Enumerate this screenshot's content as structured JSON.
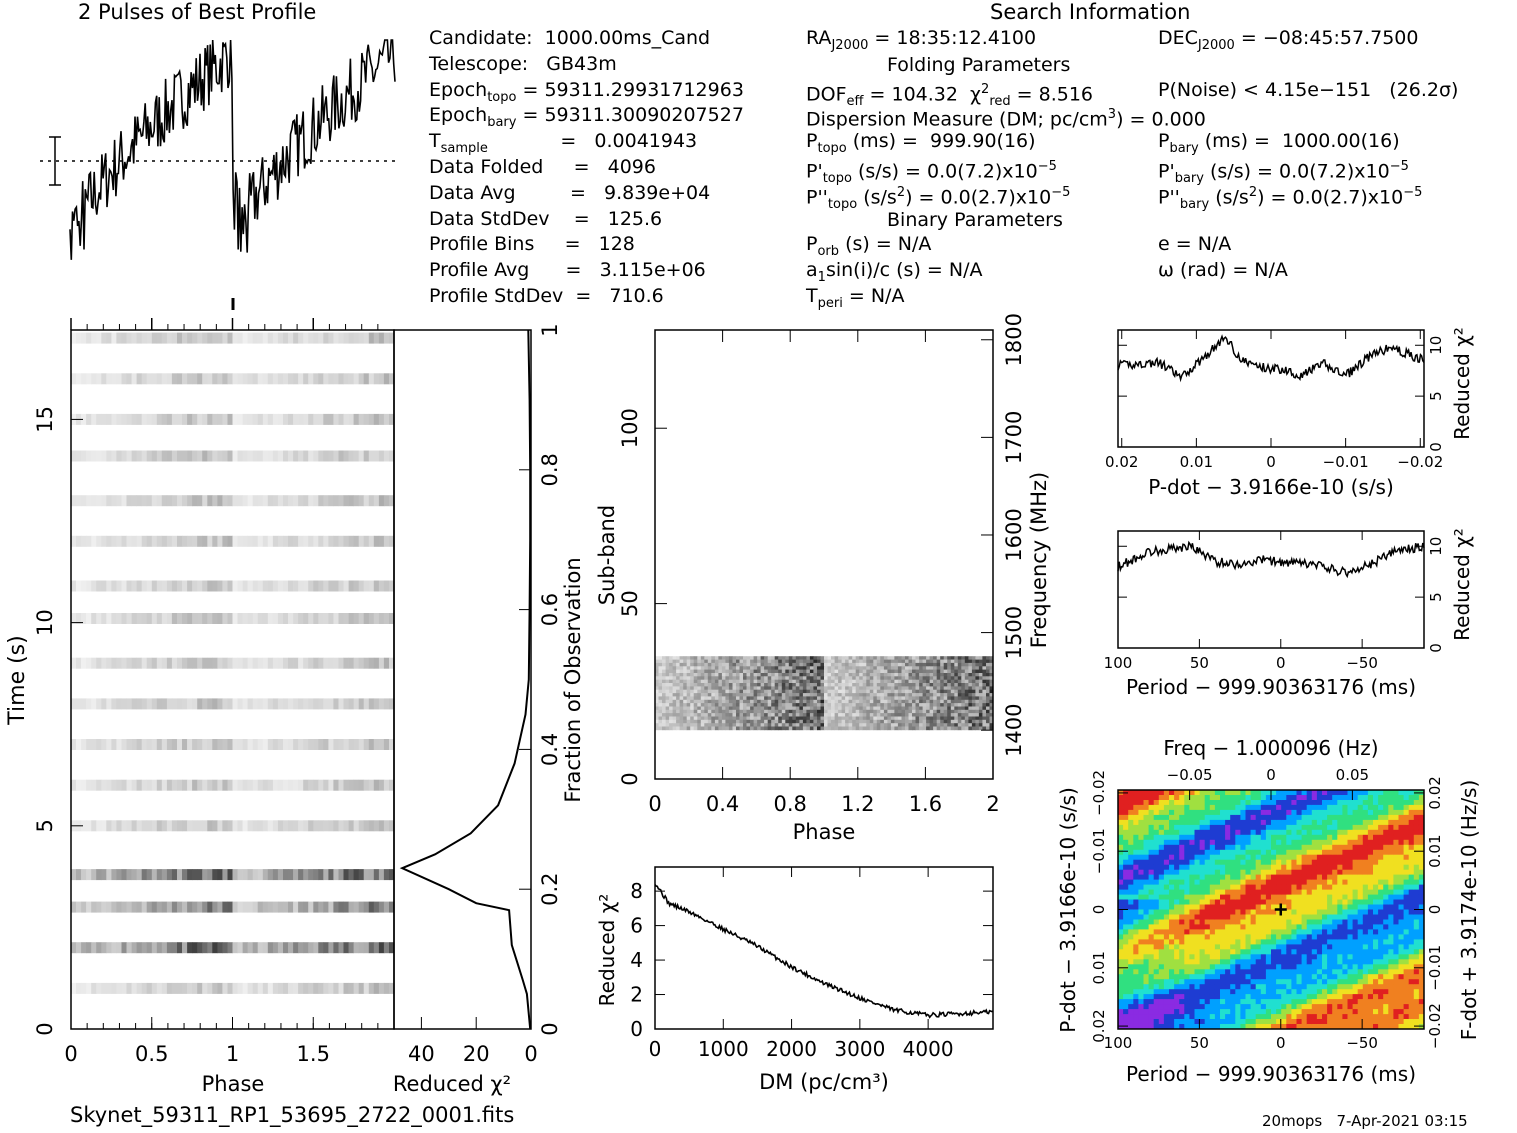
{
  "page": {
    "profile_title": "2 Pulses of Best Profile",
    "search_title": "Search Information",
    "filename": "Skynet_59311_RP1_53695_2722_0001.fits",
    "footer_right": "20mops   7-Apr-2021 03:15"
  },
  "info_left": [
    "Candidate:  1000.00ms_Cand",
    "Telescope:   GB43m",
    "Epoch<sub>topo</sub> = 59311.29931712963",
    "Epoch<sub>bary</sub> = 59311.30090207527",
    "T<sub>sample</sub>            =   0.0041943",
    "Data Folded     =   4096",
    "Data Avg         =   9.839e+04",
    "Data StdDev    =   125.6",
    "Profile Bins     =   128",
    "Profile Avg      =   3.115e+06",
    "Profile StdDev  =   710.6"
  ],
  "info_mid": [
    "RA<sub>J2000</sub> = 18:35:12.4100",
    "",
    "DOF<sub>eff</sub> = 104.32  χ<sup>2</sup><sub>red</sub> = 8.516",
    "Dispersion Measure (DM; pc/cm<sup>3</sup>) = 0.000",
    "P<sub>topo</sub> (ms) =  999.90(16)",
    "P'<sub>topo</sub> (s/s) = 0.0(7.2)x10<sup>−5</sup>",
    "P''<sub>topo</sub> (s/s<sup>2</sup>) = 0.0(2.7)x10<sup>−5</sup>",
    "",
    "P<sub>orb</sub> (s) = N/A",
    "a<sub>1</sub>sin(i)/c (s) = N/A",
    "T<sub>peri</sub> = N/A"
  ],
  "info_right": [
    "DEC<sub>J2000</sub> = −08:45:57.7500",
    "",
    "P(Noise) &lt; 4.15e−151   (26.2σ)",
    "",
    "P<sub>bary</sub> (ms) =  1000.00(16)",
    "P'<sub>bary</sub> (s/s) = 0.0(7.2)x10<sup>−5</sup>",
    "P''<sub>bary</sub> (s/s<sup>2</sup>) = 0.0(2.7)x10<sup>−5</sup>",
    "",
    "e = N/A",
    "ω (rad) = N/A",
    ""
  ],
  "section_heads": {
    "folding": "Folding Parameters",
    "binary": "Binary Parameters"
  },
  "chart_data": [
    {
      "id": "profile",
      "type": "line",
      "title": "2 Pulses of Best Profile",
      "note": "Noisy sawtooth-like profile over two pulses; rises across each pulse and drops sharply at phase 1",
      "x_range": [
        0,
        2
      ]
    },
    {
      "id": "time_phase",
      "type": "heatmap",
      "xlabel": "Phase",
      "ylabel": "Time (s)",
      "x_ticks": [
        "0",
        "0.5",
        "1",
        "1.5"
      ],
      "y_ticks": [
        "0",
        "5",
        "10",
        "15"
      ],
      "xlim": [
        0,
        2
      ],
      "ylim": [
        0,
        17.2
      ],
      "rows_y": [
        1,
        2,
        3,
        3.8,
        5,
        6,
        7,
        8,
        9,
        10.1,
        10.9,
        12,
        13,
        14.1,
        15,
        16,
        17
      ]
    },
    {
      "id": "time_redchi2",
      "type": "line",
      "xlabel": "Reduced χ2",
      "ylabel": "Fraction of Observation",
      "x_ticks": [
        "40",
        "20",
        "0"
      ],
      "y_ticks": [
        "0",
        "0.2",
        "0.4",
        "0.6",
        "0.8",
        "1"
      ],
      "xlim": [
        50,
        0
      ],
      "ylim": [
        0,
        1
      ],
      "points": [
        [
          0.3,
          0
        ],
        [
          1.5,
          0.05
        ],
        [
          3,
          0.07
        ],
        [
          5,
          0.095
        ],
        [
          7,
          0.12
        ],
        [
          8,
          0.17
        ],
        [
          20,
          0.18
        ],
        [
          30,
          0.2
        ],
        [
          47,
          0.23
        ],
        [
          35,
          0.25
        ],
        [
          22,
          0.28
        ],
        [
          12,
          0.32
        ],
        [
          6,
          0.38
        ],
        [
          2,
          0.45
        ],
        [
          0.8,
          0.5
        ],
        [
          0.5,
          0.6
        ],
        [
          0.3,
          0.7
        ],
        [
          0.3,
          0.8
        ],
        [
          0.5,
          0.9
        ],
        [
          1,
          1
        ]
      ]
    },
    {
      "id": "subband_phase",
      "type": "heatmap",
      "xlabel": "Phase",
      "ylabel": "Sub-band",
      "ylabel2": "Frequency (MHz)",
      "x_ticks": [
        "0",
        "0.4",
        "0.8",
        "1.2",
        "1.6",
        "2"
      ],
      "y_ticks": [
        "0",
        "50",
        "100"
      ],
      "y2_ticks": [
        "1400",
        "1500",
        "1600",
        "1700",
        "1800"
      ],
      "xlim": [
        0,
        2
      ],
      "ylim": [
        0,
        128
      ],
      "data_band": [
        14,
        35
      ]
    },
    {
      "id": "dm_redchi2",
      "type": "line",
      "xlabel": "DM (pc/cm3)",
      "ylabel": "Reduced χ2",
      "x_ticks": [
        "0",
        "1000",
        "2000",
        "3000",
        "4000"
      ],
      "y_ticks": [
        "0",
        "2",
        "4",
        "6",
        "8"
      ],
      "xlim": [
        0,
        4950
      ],
      "ylim": [
        0,
        9.4
      ],
      "points": [
        [
          0,
          8.5
        ],
        [
          200,
          7.3
        ],
        [
          500,
          6.8
        ],
        [
          1000,
          5.8
        ],
        [
          1500,
          4.8
        ],
        [
          2000,
          3.6
        ],
        [
          2500,
          2.6
        ],
        [
          3000,
          1.8
        ],
        [
          3500,
          1.1
        ],
        [
          4000,
          0.8
        ],
        [
          4500,
          0.9
        ],
        [
          4950,
          1.0
        ]
      ]
    },
    {
      "id": "pdot_redchi2",
      "type": "line",
      "xlabel": "P-dot − 3.9166e-10 (s/s)",
      "ylabel": "Reduced χ2",
      "x_ticks": [
        "0.02",
        "0.01",
        "0",
        "−0.01",
        "−0.02"
      ],
      "y_ticks": [
        "0",
        "5",
        "10"
      ],
      "xlim": [
        0.0205,
        -0.0205
      ],
      "ylim": [
        0,
        11.5
      ],
      "points": [
        [
          0.0205,
          8
        ],
        [
          0.015,
          8.3
        ],
        [
          0.012,
          6.8
        ],
        [
          0.008,
          9.5
        ],
        [
          0.006,
          10.8
        ],
        [
          0.004,
          8.5
        ],
        [
          0.001,
          7.8
        ],
        [
          -0.002,
          7.6
        ],
        [
          -0.004,
          7
        ],
        [
          -0.007,
          8.2
        ],
        [
          -0.01,
          7
        ],
        [
          -0.013,
          8.8
        ],
        [
          -0.016,
          9.8
        ],
        [
          -0.0205,
          8.5
        ]
      ]
    },
    {
      "id": "period_redchi2",
      "type": "line",
      "xlabel": "Period − 999.90363176 (ms)",
      "ylabel": "Reduced χ2",
      "x_ticks": [
        "100",
        "50",
        "0",
        "−50"
      ],
      "y_ticks": [
        "0",
        "5",
        "10"
      ],
      "xlim": [
        100,
        -88
      ],
      "ylim": [
        0,
        11.5
      ],
      "points": [
        [
          100,
          8
        ],
        [
          80,
          9.5
        ],
        [
          55,
          10
        ],
        [
          40,
          8.5
        ],
        [
          25,
          8.2
        ],
        [
          10,
          8.7
        ],
        [
          0,
          8.4
        ],
        [
          -20,
          8.2
        ],
        [
          -40,
          7.4
        ],
        [
          -55,
          8.2
        ],
        [
          -70,
          9.5
        ],
        [
          -88,
          10
        ]
      ]
    },
    {
      "id": "period_pdot_map",
      "type": "heatmap",
      "title": "Freq − 1.000096 (Hz)",
      "xlabel": "Period − 999.90363176 (ms)",
      "ylabel": "P-dot − 3.9166e-10 (s/s)",
      "ylabel2": "F-dot + 3.9174e-10 (Hz/s)",
      "x_ticks": [
        "100",
        "50",
        "0",
        "−50"
      ],
      "x2_ticks": [
        "−0.05",
        "0",
        "0.05"
      ],
      "y_ticks": [
        "0.02",
        "0.01",
        "0",
        "−0.01",
        "−0.02"
      ],
      "y2_ticks": [
        "0.02",
        "0.01",
        "0",
        "−0.01",
        "−0.02"
      ],
      "xlim": [
        100,
        -88
      ],
      "ylim": [
        0.0205,
        -0.0205
      ],
      "best": [
        0,
        0
      ],
      "colormap": [
        "#8a2be2",
        "#1e3cd2",
        "#00a0ff",
        "#20e0d0",
        "#30e080",
        "#a0e040",
        "#f0e020",
        "#f08020",
        "#e02020"
      ]
    }
  ]
}
